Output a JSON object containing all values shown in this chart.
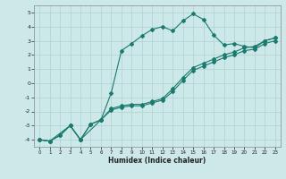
{
  "xlabel": "Humidex (Indice chaleur)",
  "xlim": [
    -0.5,
    23.5
  ],
  "ylim": [
    -4.5,
    5.5
  ],
  "yticks": [
    -4,
    -3,
    -2,
    -1,
    0,
    1,
    2,
    3,
    4,
    5
  ],
  "xticks": [
    0,
    1,
    2,
    3,
    4,
    5,
    6,
    7,
    8,
    9,
    10,
    11,
    12,
    13,
    14,
    15,
    16,
    17,
    18,
    19,
    20,
    21,
    22,
    23
  ],
  "bg_color": "#cde8e8",
  "grid_color": "#b0d0d0",
  "line_color": "#1a7a6e",
  "line1_x": [
    0,
    1,
    2,
    3,
    4,
    5,
    6,
    7,
    8,
    9,
    10,
    11,
    12,
    13,
    14,
    15,
    16,
    17,
    18,
    19,
    20,
    21,
    22,
    23
  ],
  "line1_y": [
    -4.0,
    -4.1,
    -3.7,
    -3.0,
    -4.0,
    -2.9,
    -2.6,
    -1.8,
    -1.6,
    -1.5,
    -1.5,
    -1.3,
    -1.1,
    -0.4,
    0.4,
    1.1,
    1.4,
    1.7,
    2.0,
    2.2,
    2.5,
    2.6,
    3.0,
    3.2
  ],
  "line2_x": [
    0,
    1,
    2,
    3,
    4,
    5,
    6,
    7,
    8,
    9,
    10,
    11,
    12,
    13,
    14,
    15,
    16,
    17,
    18,
    19,
    20,
    21,
    22,
    23
  ],
  "line2_y": [
    -4.0,
    -4.1,
    -3.7,
    -3.0,
    -4.0,
    -2.9,
    -2.6,
    -1.9,
    -1.7,
    -1.6,
    -1.6,
    -1.4,
    -1.2,
    -0.6,
    0.2,
    0.9,
    1.2,
    1.5,
    1.8,
    2.0,
    2.3,
    2.4,
    2.8,
    3.0
  ],
  "line3_x": [
    0,
    1,
    3,
    4,
    6,
    7,
    8,
    9,
    10,
    11,
    12,
    13,
    14,
    15,
    16,
    17,
    18,
    19,
    20,
    21,
    22,
    23
  ],
  "line3_y": [
    -4.0,
    -4.1,
    -3.0,
    -4.0,
    -2.6,
    -0.7,
    2.3,
    2.8,
    3.35,
    3.8,
    4.0,
    3.7,
    4.4,
    4.9,
    4.5,
    3.4,
    2.7,
    2.8,
    2.6,
    2.5,
    3.0,
    3.2
  ]
}
